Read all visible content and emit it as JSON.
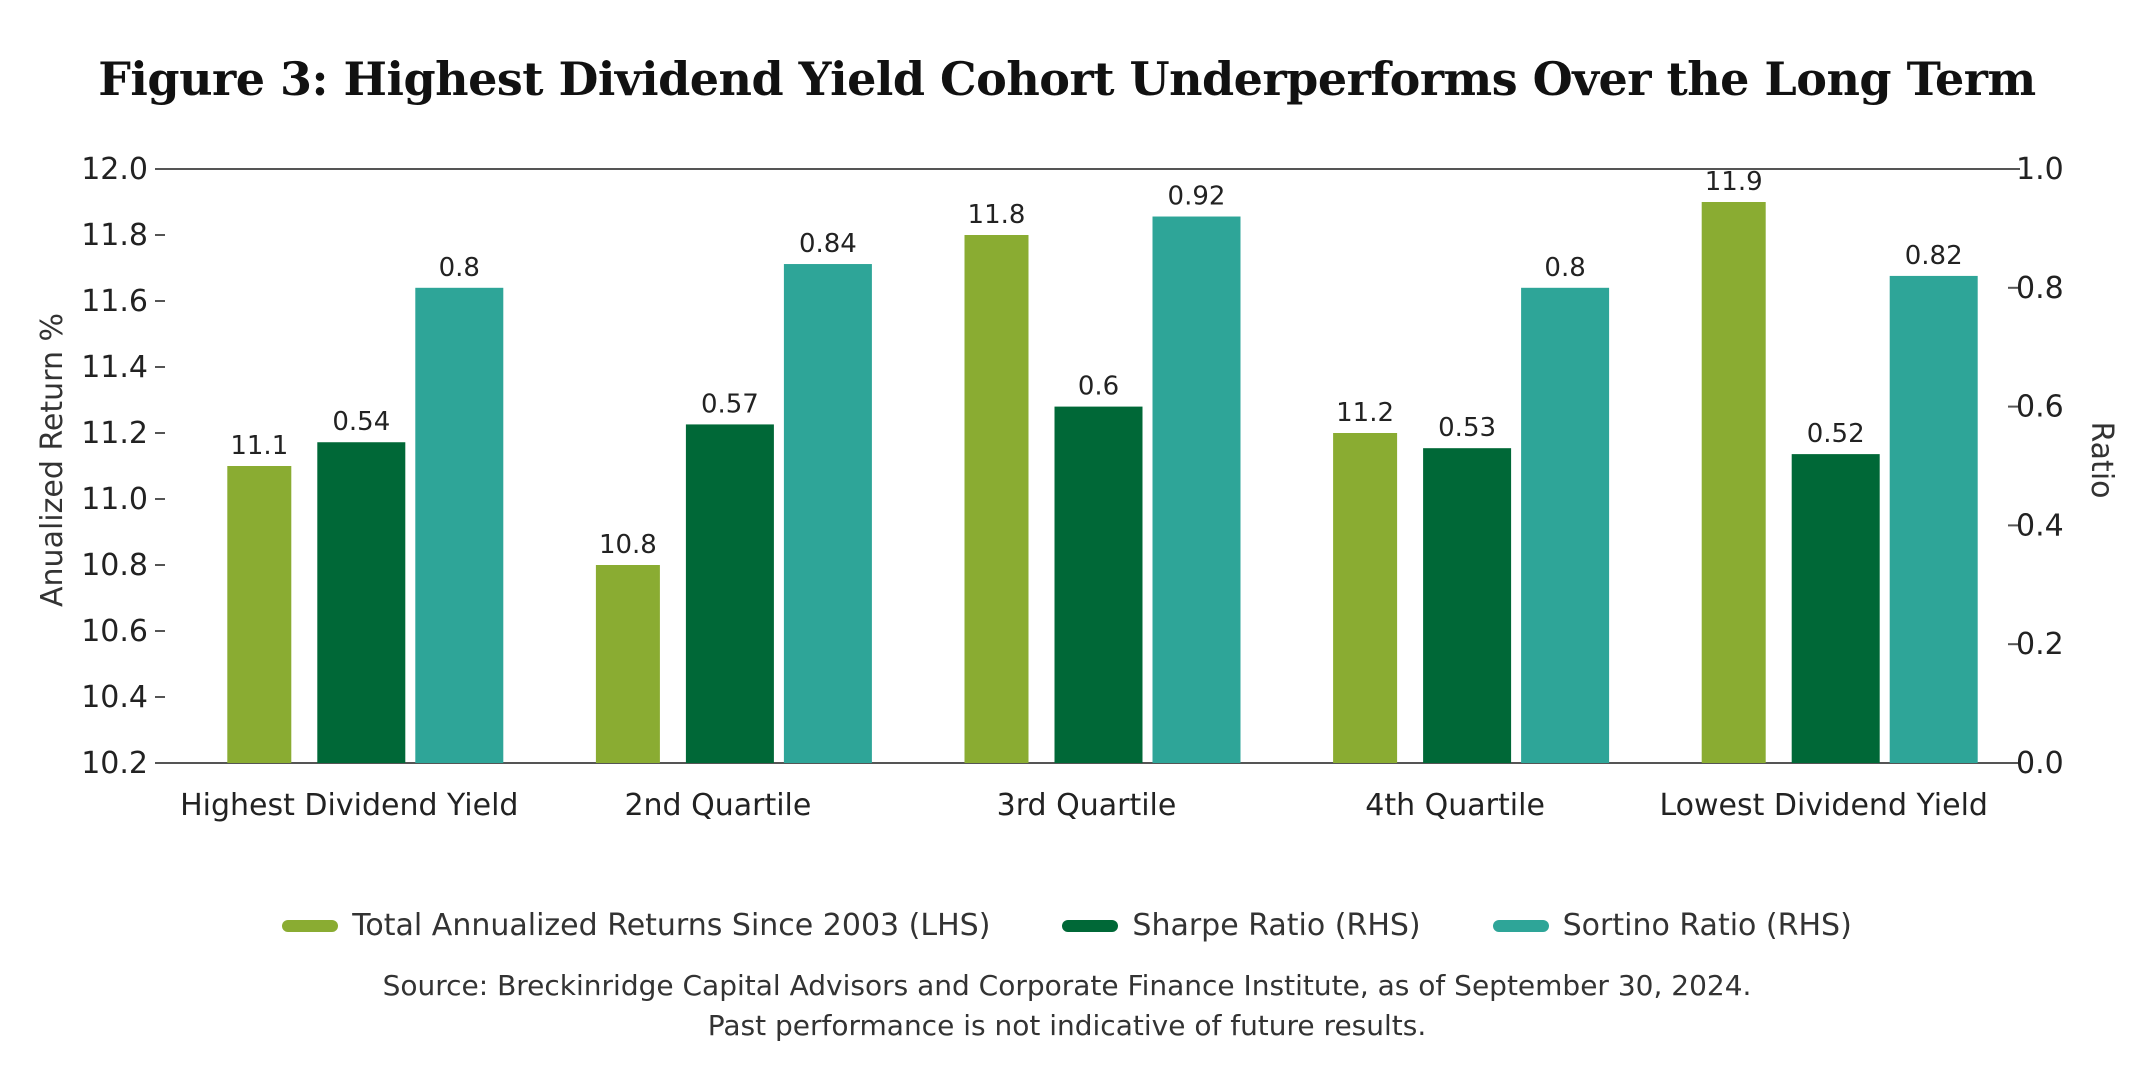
{
  "title": "Figure 3: Highest Dividend Yield Cohort Underperforms Over the Long Term",
  "source_lines": [
    "Source: Breckinridge Capital Advisors and Corporate Finance Institute, as of September 30, 2024.",
    "Past performance is not indicative of future results."
  ],
  "chart_data": {
    "type": "bar",
    "title": "Figure 3: Highest Dividend Yield Cohort Underperforms Over the Long Term",
    "categories": [
      "Highest Dividend Yield",
      "2nd Quartile",
      "3rd Quartile",
      "4th Quartile",
      "Lowest Dividend Yield"
    ],
    "series": [
      {
        "name": "Total Annualized Returns Since 2003 (LHS)",
        "axis": "left",
        "color": "#8aac32",
        "values": [
          11.1,
          10.8,
          11.8,
          11.2,
          11.9
        ]
      },
      {
        "name": "Sharpe Ratio (RHS)",
        "axis": "right",
        "color": "#006837",
        "values": [
          0.54,
          0.57,
          0.6,
          0.53,
          0.52
        ]
      },
      {
        "name": "Sortino Ratio (RHS)",
        "axis": "right",
        "color": "#2ea598",
        "values": [
          0.8,
          0.84,
          0.92,
          0.8,
          0.82
        ]
      }
    ],
    "ylabel": "Anualized Return %",
    "ylabel_right": "Ratio",
    "ylim": [
      10.2,
      12.0
    ],
    "ylim_right": [
      0.0,
      1.0
    ],
    "yticks": [
      "10.2",
      "10.4",
      "10.6",
      "10.8",
      "11.0",
      "11.2",
      "11.4",
      "11.6",
      "11.8",
      "12.0"
    ],
    "yticks_right": [
      "0.0",
      "0.2",
      "0.4",
      "0.6",
      "0.8",
      "1.0"
    ],
    "legend_position": "bottom",
    "grid": false
  }
}
